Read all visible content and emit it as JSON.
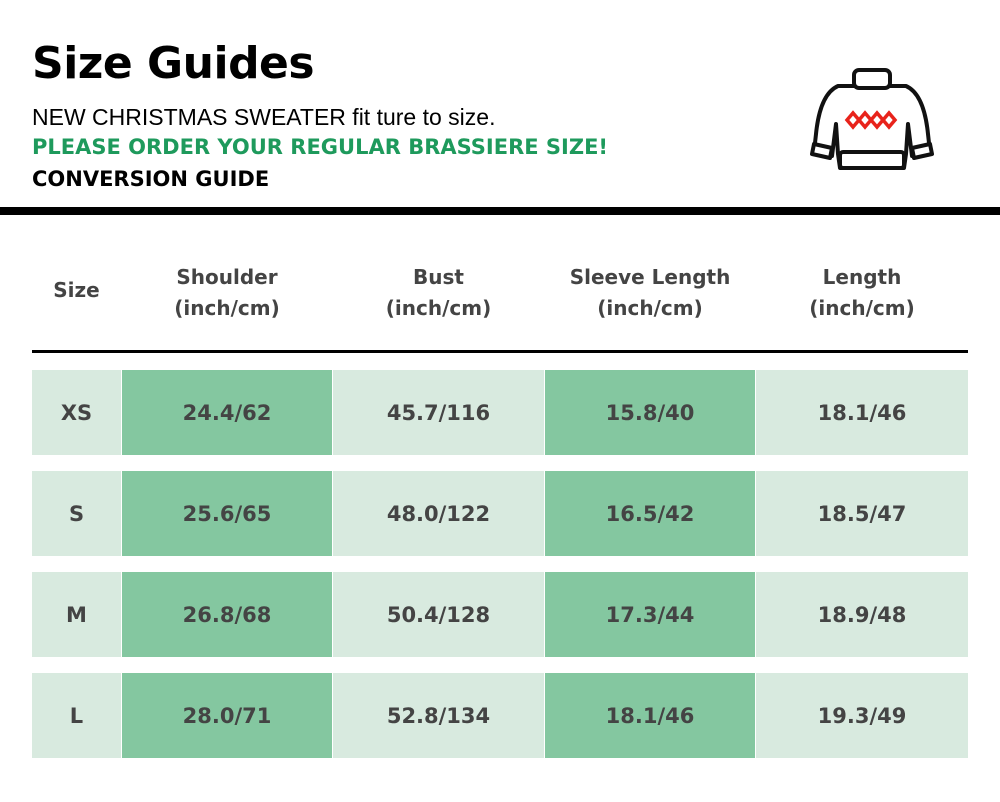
{
  "header": {
    "title": "Size Guides",
    "subtitle": "NEW CHRISTMAS SWEATER fit ture to size.",
    "notice": "PLEASE ORDER YOUR REGULAR BRASSIERE SIZE!",
    "section": "CONVERSION GUIDE",
    "icon": "sweater-icon",
    "notice_color": "#1e9a5c"
  },
  "table": {
    "columns": [
      {
        "name": "Size",
        "unit": ""
      },
      {
        "name": "Shoulder",
        "unit": "(inch/cm)"
      },
      {
        "name": "Bust",
        "unit": "(inch/cm)"
      },
      {
        "name": "Sleeve Length",
        "unit": "(inch/cm)"
      },
      {
        "name": "Length",
        "unit": "(inch/cm)"
      }
    ],
    "rows": [
      [
        "XS",
        "24.4/62",
        "45.7/116",
        "15.8/40",
        "18.1/46"
      ],
      [
        "S",
        "25.6/65",
        "48.0/122",
        "16.5/42",
        "18.5/47"
      ],
      [
        "M",
        "26.8/68",
        "50.4/128",
        "17.3/44",
        "18.9/48"
      ],
      [
        "L",
        "28.0/71",
        "52.8/134",
        "18.1/46",
        "19.3/49"
      ]
    ],
    "colors": {
      "light": "#d8eadf",
      "dark": "#84c7a0"
    }
  }
}
